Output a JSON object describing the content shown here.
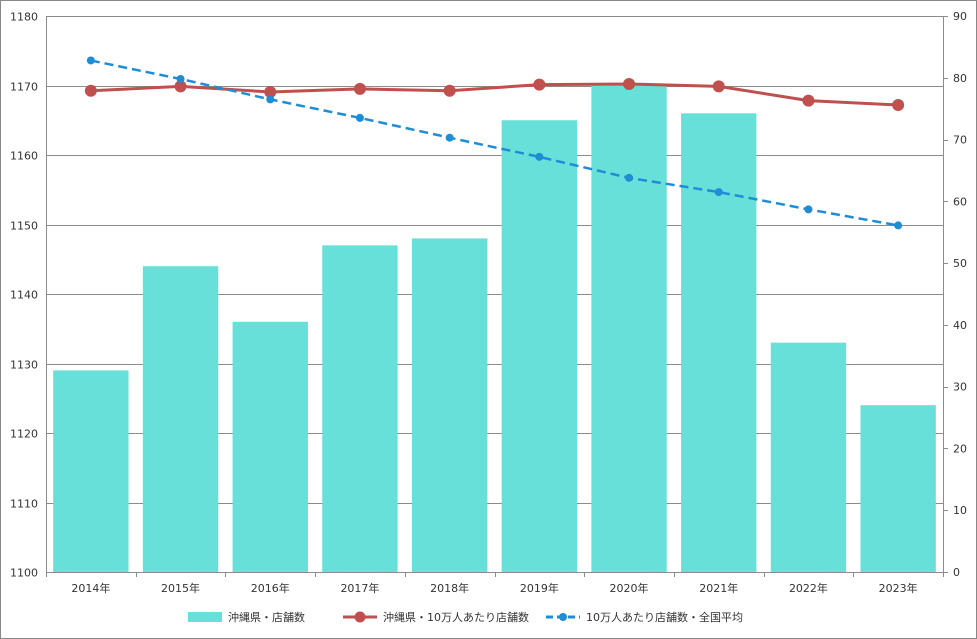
{
  "chart_data": {
    "type": "bar+line",
    "categories": [
      "2014年",
      "2015年",
      "2016年",
      "2017年",
      "2018年",
      "2019年",
      "2020年",
      "2021年",
      "2022年",
      "2023年"
    ],
    "series": [
      {
        "name": "沖縄県・店舗数",
        "kind": "bar",
        "axis": "left",
        "color": "#66e0d8",
        "values": [
          1129,
          1144,
          1136,
          1147,
          1148,
          1165,
          1170,
          1166,
          1133,
          1124
        ]
      },
      {
        "name": "沖縄県・10万人あたり店舗数",
        "kind": "line",
        "axis": "right",
        "color": "#c0504d",
        "values": [
          77.9,
          78.6,
          77.7,
          78.2,
          77.9,
          78.9,
          79.0,
          78.6,
          76.3,
          75.6
        ]
      },
      {
        "name": "10万人あたり店舗数・全国平均",
        "kind": "line-dashed",
        "axis": "right",
        "color": "#1f8dd6",
        "values": [
          82.8,
          79.8,
          76.5,
          73.5,
          70.3,
          67.2,
          63.8,
          61.5,
          58.7,
          56.1
        ]
      }
    ],
    "y_left": {
      "min": 1100,
      "max": 1180,
      "step": 10,
      "ticks": [
        "1100",
        "1110",
        "1120",
        "1130",
        "1140",
        "1150",
        "1160",
        "1170",
        "1180"
      ]
    },
    "y_right": {
      "min": 0,
      "max": 90,
      "step": 10,
      "ticks": [
        "0",
        "10",
        "20",
        "30",
        "40",
        "50",
        "60",
        "70",
        "80",
        "90"
      ]
    },
    "grid": true,
    "legend_position": "bottom"
  }
}
